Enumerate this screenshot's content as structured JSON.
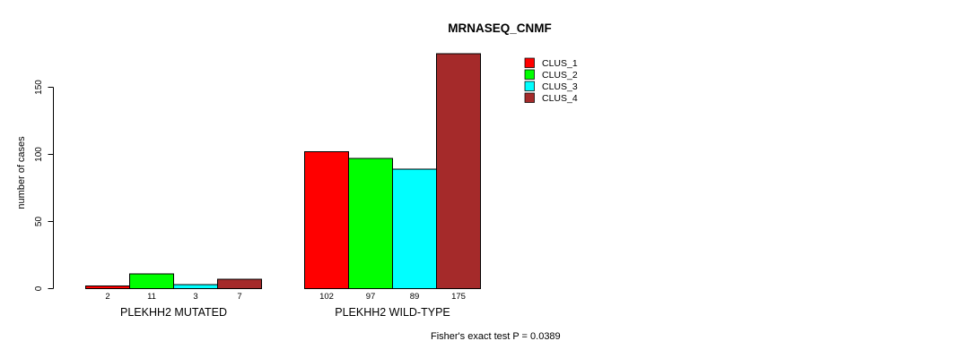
{
  "title": "MRNASEQ_CNMF",
  "footnote": "Fisher's exact test P = 0.0389",
  "y_axis_label": "number of cases",
  "colors": {
    "bar_outline": "#000000",
    "axis": "#000000",
    "background": "#ffffff"
  },
  "legend": {
    "entries": [
      {
        "label": "CLUS_1",
        "color": "#FF0000"
      },
      {
        "label": "CLUS_2",
        "color": "#00FF00"
      },
      {
        "label": "CLUS_3",
        "color": "#00FFFF"
      },
      {
        "label": "CLUS_4",
        "color": "#A52A2A"
      }
    ]
  },
  "chart_data": {
    "type": "bar",
    "title": "MRNASEQ_CNMF",
    "xlabel": "",
    "ylabel": "number of cases",
    "ylim": [
      0,
      150
    ],
    "yticks": [
      0,
      50,
      100,
      150
    ],
    "grid": false,
    "legend_position": "top-right",
    "categories": [
      "PLEKHH2 MUTATED",
      "PLEKHH2 WILD-TYPE"
    ],
    "series": [
      {
        "name": "CLUS_1",
        "color": "#FF0000",
        "values": [
          2,
          102
        ]
      },
      {
        "name": "CLUS_2",
        "color": "#00FF00",
        "values": [
          11,
          97
        ]
      },
      {
        "name": "CLUS_3",
        "color": "#00FFFF",
        "values": [
          3,
          89
        ]
      },
      {
        "name": "CLUS_4",
        "color": "#A52A2A",
        "values": [
          7,
          175
        ]
      }
    ],
    "bar_value_labels": [
      [
        "2",
        "11",
        "3",
        "7"
      ],
      [
        "102",
        "97",
        "89",
        "175"
      ]
    ],
    "annotation": "Fisher's exact test P = 0.0389"
  }
}
